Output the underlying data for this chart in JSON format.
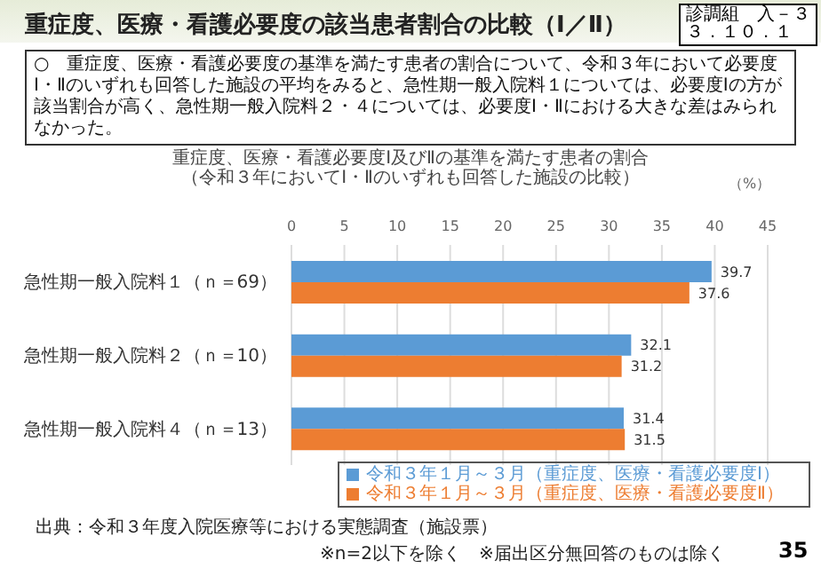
{
  "chart_data": {
    "type": "bar",
    "orientation": "horizontal",
    "title": "重症度、医療・看護必要度の該当患者割合の比較（Ⅰ／Ⅱ）",
    "subtitle": "○　重症度、医療・看護必要度の基準を満たす患者の割合について、令和３年において必要度Ⅰ・Ⅱのいずれも回答した施設の平均をみると、急性期一般入院料１については、必要度Ⅰの方が該当割合が高く、急性期一般入院料２・４については、必要度Ⅰ・Ⅱにおける大きな差はみられなかった。",
    "xlabel": "（%）",
    "categories": [
      "急性期一般入院料１（ｎ＝69）",
      "急性期一般入院料２（ｎ＝10）",
      "急性期一般入院料４（ｎ＝13）"
    ],
    "series": [
      {
        "name": "令和３年１月～３月（重症度、医療・看護必要度Ⅰ）",
        "color": "#5b9bd5",
        "values": [
          39.7,
          32.1,
          31.4
        ]
      },
      {
        "name": "令和３年１月～３月（重症度、医療・看護必要度Ⅱ）",
        "color": "#ed7d31",
        "values": [
          37.6,
          31.2,
          31.5
        ]
      }
    ],
    "xlim": [
      0,
      45
    ],
    "xticks": [
      0,
      5,
      10,
      15,
      20,
      25,
      30,
      35,
      40,
      45
    ],
    "grid": "x",
    "data_labels": true,
    "legend": "bottom right",
    "annotations": [
      "診調組　入－３",
      "３．１０．１",
      "重症度、医療・看護必要度Ⅰ及びⅡの基準を満たす患者の割合",
      "（令和３年においてⅠ・Ⅱのいずれも回答した施設の比較）",
      "出典：令和３年度入院医療等における実態調査（施設票）",
      "※n=2以下を除く　※届出区分無回答のものは除く",
      "35"
    ]
  }
}
